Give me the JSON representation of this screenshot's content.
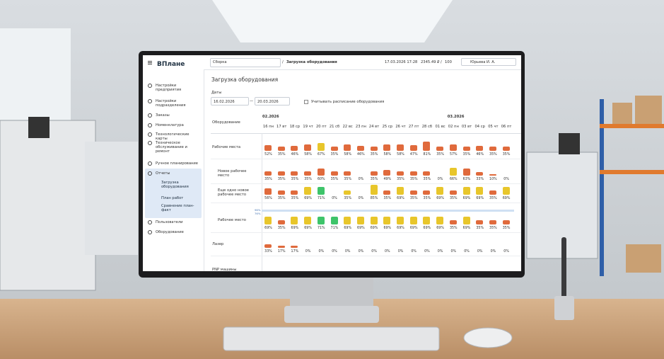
{
  "topbar": {
    "logo": "ВПлане",
    "workshop": "Сборка",
    "separator": "/",
    "page": "Загрузка оборудования",
    "datetime": "17.03.2026 17:28",
    "balance": "2345.49 ₽",
    "balance_separator": "/",
    "limit": "100",
    "user": "Юрьева И. А."
  },
  "sidebar": {
    "items": [
      {
        "label": "Настройки предприятия"
      },
      {
        "label": "Настройки подразделения"
      },
      {
        "label": "Заказы"
      },
      {
        "label": "Номенклатура"
      },
      {
        "label": "Технологические карты"
      },
      {
        "label": "Техническое обслуживание и ремонт"
      },
      {
        "label": "Ручное планирование"
      },
      {
        "label": "Отчеты",
        "children": [
          {
            "label": "Загрузка оборудования"
          },
          {
            "label": "План работ"
          },
          {
            "label": "Сравнение план-факт"
          }
        ]
      },
      {
        "label": "Пользователи"
      },
      {
        "label": "Оборудование"
      }
    ]
  },
  "page": {
    "title": "Загрузка оборудования",
    "dates_label": "Даты",
    "date_from": "16.02.2026",
    "date_dash": "—",
    "date_to": "20.03.2026",
    "checkbox_label": "Учитывать расписание оборудования"
  },
  "table": {
    "column_header": "Оборудование",
    "months": [
      {
        "label": "02.2026",
        "days": [
          "16 пн",
          "17 вт",
          "18 ср",
          "19 чт",
          "20 пт",
          "21 сб",
          "22 вс",
          "23 пн",
          "24 вт",
          "25 ср",
          "26 чт",
          "27 пт",
          "28 сб",
          "01 вс"
        ]
      },
      {
        "label": "03.2026",
        "days": [
          "02 пн",
          "03 вт",
          "04 ср",
          "05 чт",
          "06 пт"
        ]
      }
    ],
    "palette": {
      "orange": "#e06a3c",
      "yellow": "#e8c62b",
      "green": "#3ec46a"
    },
    "groups": [
      {
        "label": "Рабочие места",
        "values": [
          52,
          35,
          46,
          58,
          67,
          35,
          58,
          46,
          35,
          58,
          58,
          47,
          81,
          35,
          57,
          35,
          46,
          35,
          35
        ],
        "value_labels": [
          "52%",
          "35%",
          "46%",
          "58%",
          "67%",
          "35%",
          "58%",
          "46%",
          "35%",
          "58%",
          "58%",
          "47%",
          "81%",
          "35%",
          "57%",
          "35%",
          "46%",
          "35%",
          "35%"
        ],
        "colors": [
          "orange",
          "orange",
          "orange",
          "orange",
          "yellow",
          "orange",
          "orange",
          "orange",
          "orange",
          "orange",
          "orange",
          "orange",
          "orange",
          "orange",
          "orange",
          "orange",
          "orange",
          "orange",
          "orange"
        ],
        "rows": [
          {
            "label": "Новое рабочее место",
            "values": [
              35,
              35,
              35,
              35,
              60,
              35,
              35,
              0,
              35,
              49,
              35,
              35,
              35,
              0,
              66,
              63,
              33,
              10,
              0
            ],
            "value_labels": [
              "35%",
              "35%",
              "35%",
              "35%",
              "60%",
              "35%",
              "35%",
              "0%",
              "35%",
              "49%",
              "35%",
              "35%",
              "35%",
              "0%",
              "66%",
              "63%",
              "33%",
              "10%",
              "0%"
            ],
            "colors": [
              "orange",
              "orange",
              "orange",
              "orange",
              "orange",
              "orange",
              "orange",
              null,
              "orange",
              "orange",
              "orange",
              "orange",
              "orange",
              null,
              "yellow",
              "orange",
              "orange",
              "orange",
              null
            ]
          },
          {
            "label": "Еще одно новое рабочее место",
            "values": [
              56,
              35,
              35,
              69,
              71,
              0,
              35,
              0,
              85,
              35,
              69,
              35,
              35,
              69,
              35,
              69,
              69,
              35,
              69
            ],
            "value_labels": [
              "56%",
              "35%",
              "35%",
              "69%",
              "71%",
              "0%",
              "35%",
              "0%",
              "85%",
              "35%",
              "69%",
              "35%",
              "35%",
              "69%",
              "35%",
              "69%",
              "69%",
              "35%",
              "69%"
            ],
            "colors": [
              "orange",
              "orange",
              "orange",
              "yellow",
              "green",
              null,
              "yellow",
              null,
              "yellow",
              "orange",
              "yellow",
              "orange",
              "orange",
              "yellow",
              "orange",
              "yellow",
              "yellow",
              "orange",
              "yellow"
            ]
          },
          {
            "label": "Рабочее место",
            "marker_labels": [
              "96%",
              "76%"
            ],
            "values": [
              69,
              35,
              69,
              69,
              71,
              71,
              69,
              69,
              69,
              69,
              69,
              69,
              69,
              69,
              35,
              69,
              35,
              35,
              35
            ],
            "value_labels": [
              "69%",
              "35%",
              "69%",
              "69%",
              "71%",
              "71%",
              "69%",
              "69%",
              "69%",
              "69%",
              "69%",
              "69%",
              "69%",
              "69%",
              "35%",
              "69%",
              "35%",
              "35%",
              "35%"
            ],
            "colors": [
              "yellow",
              "orange",
              "yellow",
              "yellow",
              "green",
              "green",
              "yellow",
              "yellow",
              "yellow",
              "yellow",
              "yellow",
              "yellow",
              "yellow",
              "yellow",
              "orange",
              "yellow",
              "orange",
              "orange",
              "orange"
            ]
          }
        ]
      },
      {
        "label": "Лазер",
        "values": [
          33,
          17,
          17,
          0,
          0,
          0,
          0,
          0,
          0,
          0,
          0,
          0,
          0,
          0,
          0,
          0,
          0,
          0,
          0
        ],
        "value_labels": [
          "33%",
          "17%",
          "17%",
          "0%",
          "0%",
          "0%",
          "0%",
          "0%",
          "0%",
          "0%",
          "0%",
          "0%",
          "0%",
          "0%",
          "0%",
          "0%",
          "0%",
          "0%",
          "0%"
        ],
        "colors": [
          "orange",
          "orange",
          "orange",
          null,
          null,
          null,
          null,
          null,
          null,
          null,
          null,
          null,
          null,
          null,
          null,
          null,
          null,
          null,
          null
        ],
        "rows": []
      },
      {
        "label": "PNP машины",
        "rows": []
      }
    ]
  }
}
